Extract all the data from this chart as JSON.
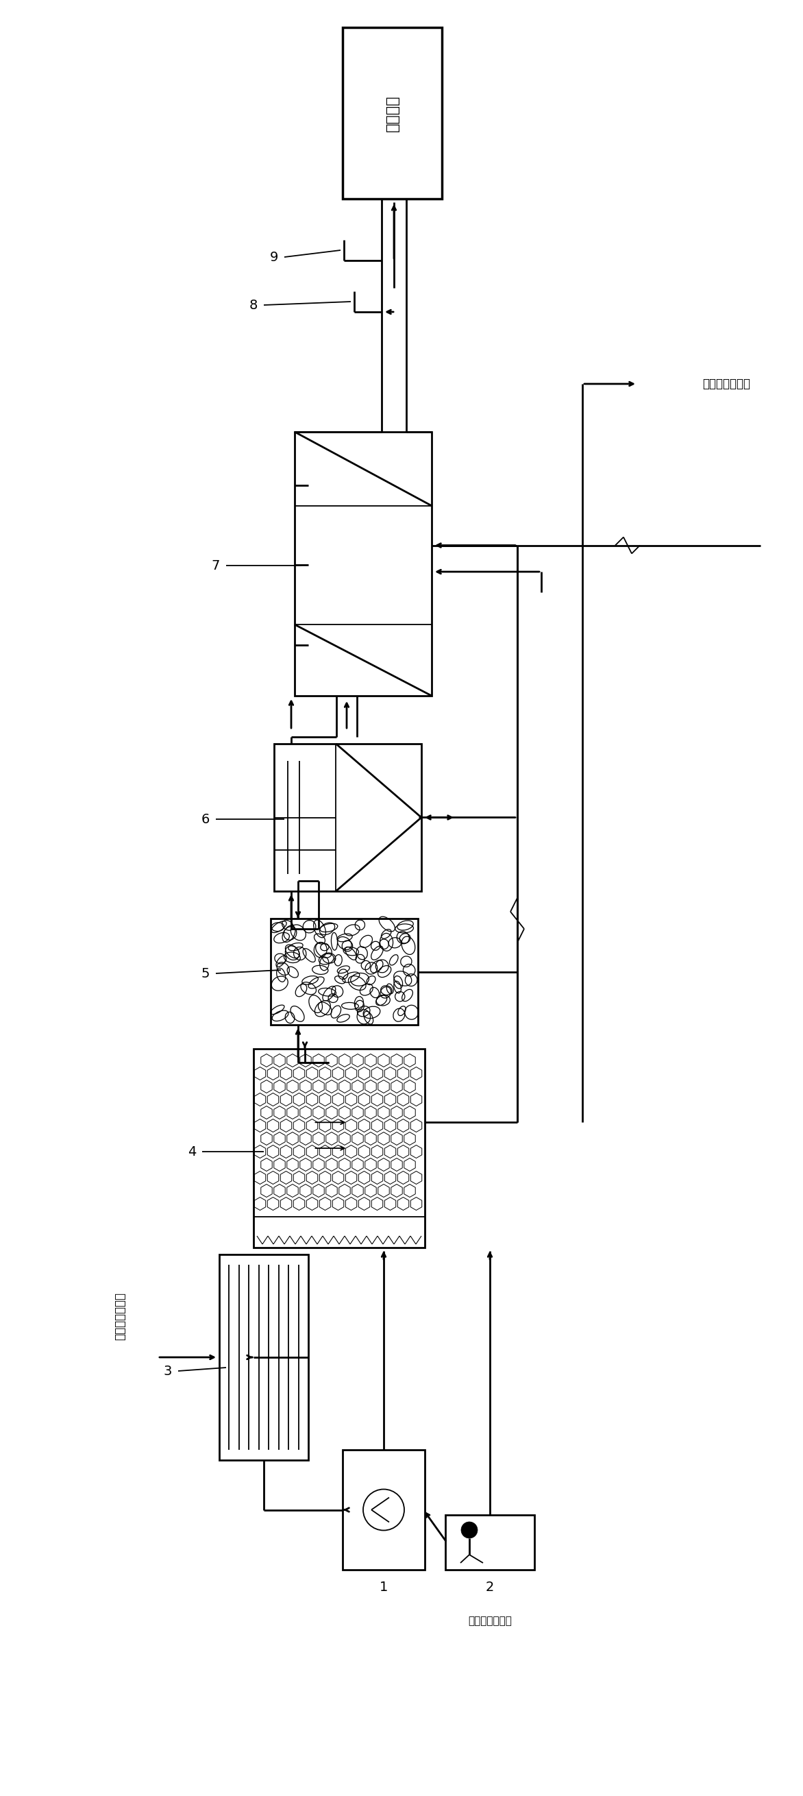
{
  "bg_color": "#ffffff",
  "label_top": "达标排放",
  "label_leachate": "早期垃圾渗滤液",
  "label_blower": "空气鼓风机出口",
  "label_sludge": "污泥排至填埋场",
  "nums": [
    "1",
    "2",
    "3",
    "4",
    "5",
    "6",
    "7",
    "8",
    "9"
  ],
  "lw_main": 2.0,
  "lw_thin": 1.3
}
